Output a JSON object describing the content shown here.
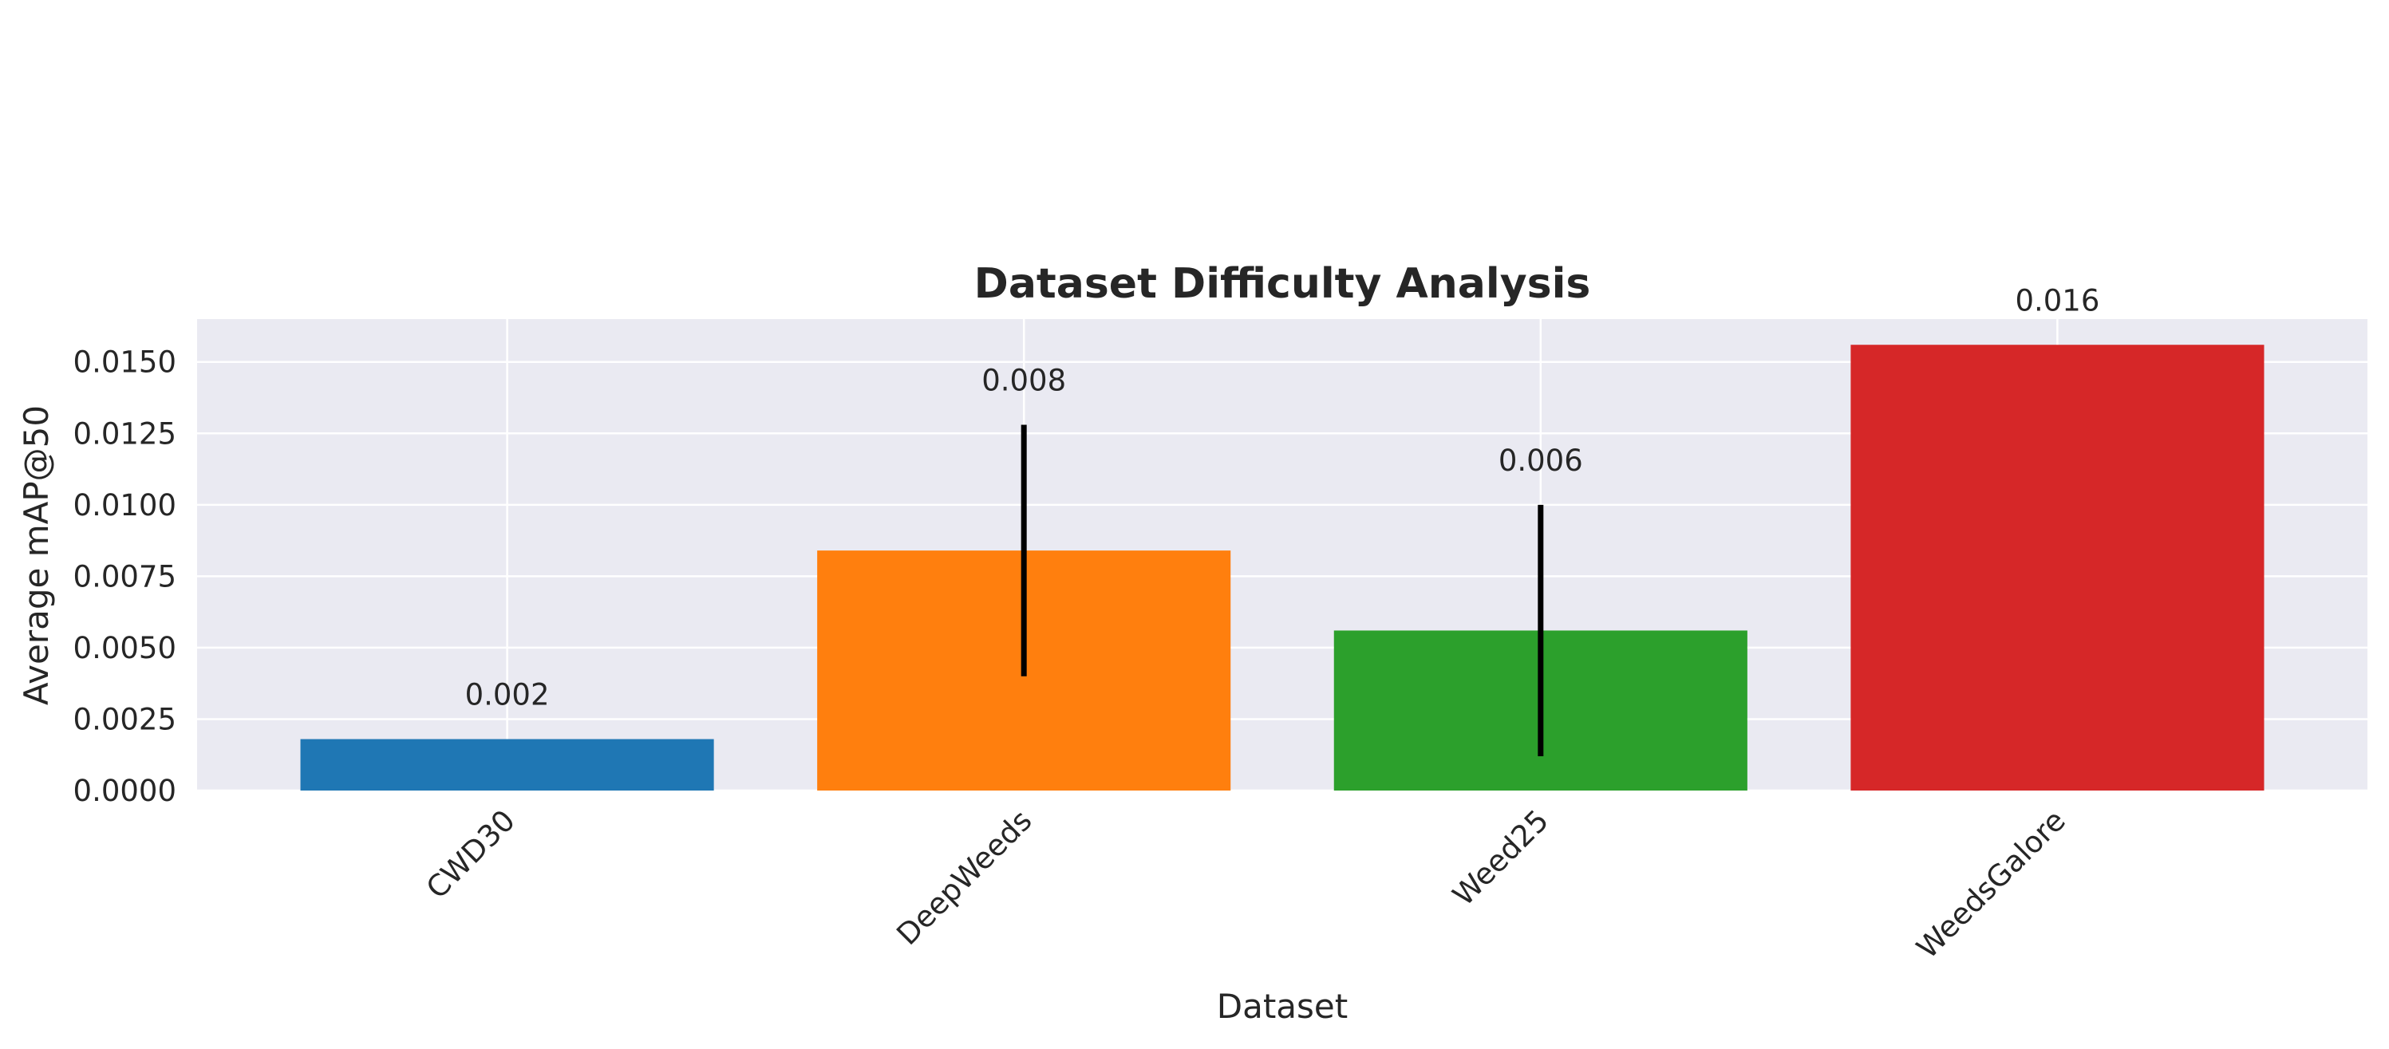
{
  "chart_data": {
    "type": "bar",
    "title": "Dataset Difficulty Analysis",
    "xlabel": "Dataset",
    "ylabel": "Average mAP@50",
    "categories": [
      "CWD30",
      "DeepWeeds",
      "Weed25",
      "WeedsGalore"
    ],
    "values": [
      0.0018,
      0.0084,
      0.0056,
      0.0156
    ],
    "errors": [
      0.0,
      0.0044,
      0.0044,
      0.0
    ],
    "value_labels": [
      "0.002",
      "0.008",
      "0.006",
      "0.016"
    ],
    "colors": [
      "#1f77b4",
      "#ff7f0e",
      "#2ca02c",
      "#d62728"
    ],
    "ylim": [
      0,
      0.0165
    ],
    "yticks": [
      0.0,
      0.0025,
      0.005,
      0.0075,
      0.01,
      0.0125,
      0.015
    ],
    "ytick_labels": [
      "0.0000",
      "0.0025",
      "0.0050",
      "0.0075",
      "0.0100",
      "0.0125",
      "0.0150"
    ],
    "grid": true,
    "error_color": "#000000",
    "background_color": "#eaeaf2"
  }
}
